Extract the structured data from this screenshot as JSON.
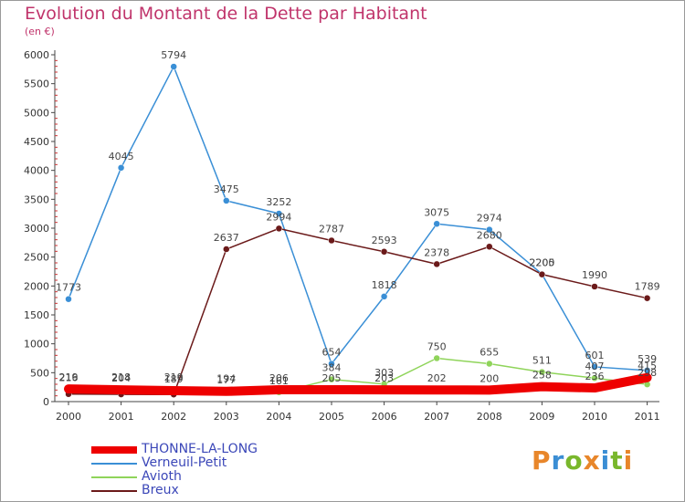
{
  "header": {
    "title": "Evolution du Montant de la Dette par Habitant",
    "unit": "(en €)"
  },
  "brand": {
    "text": "Proxiti",
    "colors": [
      "#e8862a",
      "#3b8ed4",
      "#79b72c",
      "#e8862a",
      "#3b8ed4",
      "#79b72c",
      "#e8862a"
    ]
  },
  "chart_data": {
    "type": "line",
    "title": "Evolution du Montant de la Dette par Habitant",
    "subtitle": "(en €)",
    "x": [
      "2000",
      "2001",
      "2002",
      "2003",
      "2004",
      "2005",
      "2006",
      "2007",
      "2008",
      "2009",
      "2010",
      "2011"
    ],
    "ylim": [
      0,
      6000
    ],
    "yticks": [
      0,
      500,
      1000,
      1500,
      2000,
      2500,
      3000,
      3500,
      4000,
      4500,
      5000,
      5500,
      6000
    ],
    "grid": false,
    "legend": "bottom-left",
    "series": [
      {
        "name": "THONNE-LA-LONG",
        "color": "#ee0000",
        "values": [
          219,
          204,
          189,
          177,
          206,
          205,
          203,
          202,
          200,
          258,
          236,
          415
        ],
        "labels": [
          "219",
          "204",
          "189",
          "177",
          "206",
          "205",
          "203",
          "202",
          "200",
          "258",
          "236",
          "415"
        ]
      },
      {
        "name": "Verneuil-Petit",
        "color": "#3a8fd6",
        "values": [
          1773,
          4045,
          5794,
          3475,
          3252,
          654,
          1818,
          3075,
          2974,
          2205,
          601,
          539
        ],
        "labels": [
          "1773",
          "4045",
          "5794",
          "3475",
          "3252",
          "654",
          "1818",
          "3075",
          "2974",
          "2205",
          "601",
          "539"
        ]
      },
      {
        "name": "Avioth",
        "color": "#8fd45a",
        "values": [
          216,
          218,
          219,
          194,
          161,
          384,
          303,
          750,
          655,
          511,
          407,
          298
        ],
        "labels": [
          "216",
          "218",
          "219",
          "194",
          "161",
          "384",
          "303",
          "750",
          "655",
          "511",
          "407",
          "298"
        ]
      },
      {
        "name": "Breux",
        "color": "#6b1a1a",
        "values": [
          130,
          125,
          123,
          2637,
          2994,
          2787,
          2593,
          2378,
          2680,
          2200,
          1990,
          1789
        ],
        "labels": [
          "",
          "",
          "",
          "2637",
          "2994",
          "2787",
          "2593",
          "2378",
          "2680",
          "2200",
          "1990",
          "1789"
        ]
      }
    ]
  }
}
